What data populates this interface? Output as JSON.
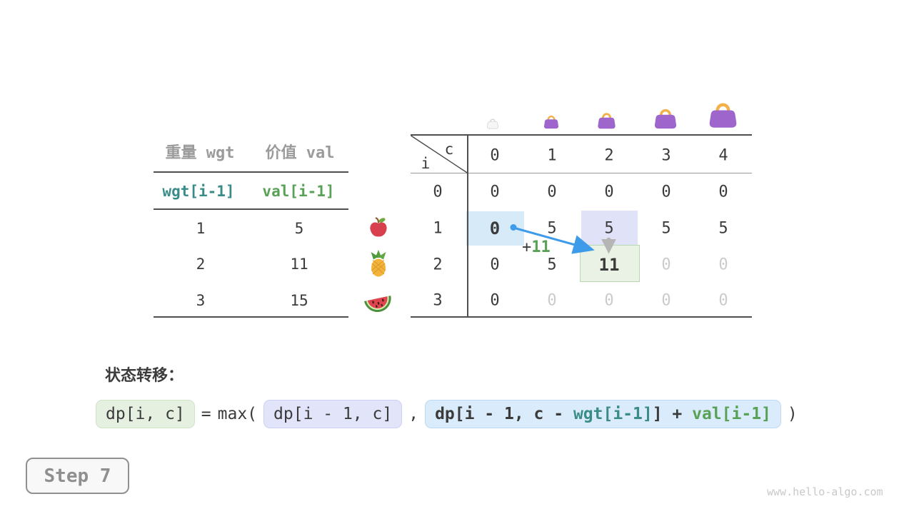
{
  "colors": {
    "teal": "#3a8c89",
    "green": "#58a156",
    "blue_arrow": "#3d9be9",
    "cell_highlight_blue": "#d7eaf8",
    "cell_highlight_purple": "#e0e2f7",
    "cell_highlight_green": "#e9f2e5",
    "bag_purple": "#9e66cd",
    "bag_handle_orange": "#f2b14a",
    "dim_text": "#cbcbcb",
    "gray_header_text": "#9b9b9b"
  },
  "items_table": {
    "headers": [
      "重量 wgt",
      "价值 val"
    ],
    "index_row": [
      "wgt[i-1]",
      "val[i-1]"
    ],
    "rows": [
      [
        "1",
        "5"
      ],
      [
        "2",
        "11"
      ],
      [
        "3",
        "15"
      ]
    ]
  },
  "fruit_icons": [
    "apple-icon",
    "pineapple-icon",
    "watermelon-icon"
  ],
  "capacity_icons": [
    "bag-ghost-icon",
    "bag-icon-1",
    "bag-icon-2",
    "bag-icon-3",
    "bag-icon-4"
  ],
  "dp_table": {
    "corner": {
      "col_var": "c",
      "row_var": "i"
    },
    "col_headers": [
      "0",
      "1",
      "2",
      "3",
      "4"
    ],
    "rows": [
      {
        "header": "0",
        "cells": [
          {
            "v": "0"
          },
          {
            "v": "0"
          },
          {
            "v": "0"
          },
          {
            "v": "0"
          },
          {
            "v": "0"
          }
        ]
      },
      {
        "header": "1",
        "cells": [
          {
            "v": "0",
            "em": true
          },
          {
            "v": "5"
          },
          {
            "v": "5"
          },
          {
            "v": "5"
          },
          {
            "v": "5"
          }
        ]
      },
      {
        "header": "2",
        "cells": [
          {
            "v": "0"
          },
          {
            "v": "5"
          },
          {
            "v": "11",
            "em": true
          },
          {
            "v": "0",
            "dim": true
          },
          {
            "v": "0",
            "dim": true
          }
        ]
      },
      {
        "header": "3",
        "cells": [
          {
            "v": "0"
          },
          {
            "v": "0",
            "dim": true
          },
          {
            "v": "0",
            "dim": true
          },
          {
            "v": "0",
            "dim": true
          },
          {
            "v": "0",
            "dim": true
          }
        ]
      }
    ]
  },
  "annotation": {
    "plus": "+",
    "value": "11"
  },
  "transition": {
    "label": "状态转移：",
    "lhs": "dp[i, c]",
    "equals": "=",
    "max_open": "max(",
    "arg1": "dp[i - 1, c]",
    "comma": ",",
    "arg2_prefix": "dp[i - 1, c - ",
    "arg2_wgt": "wgt[i-1]",
    "arg2_mid": "] + ",
    "arg2_val": "val[i-1]",
    "close_paren": ")"
  },
  "step_badge": "Step 7",
  "watermark": "www.hello-algo.com"
}
